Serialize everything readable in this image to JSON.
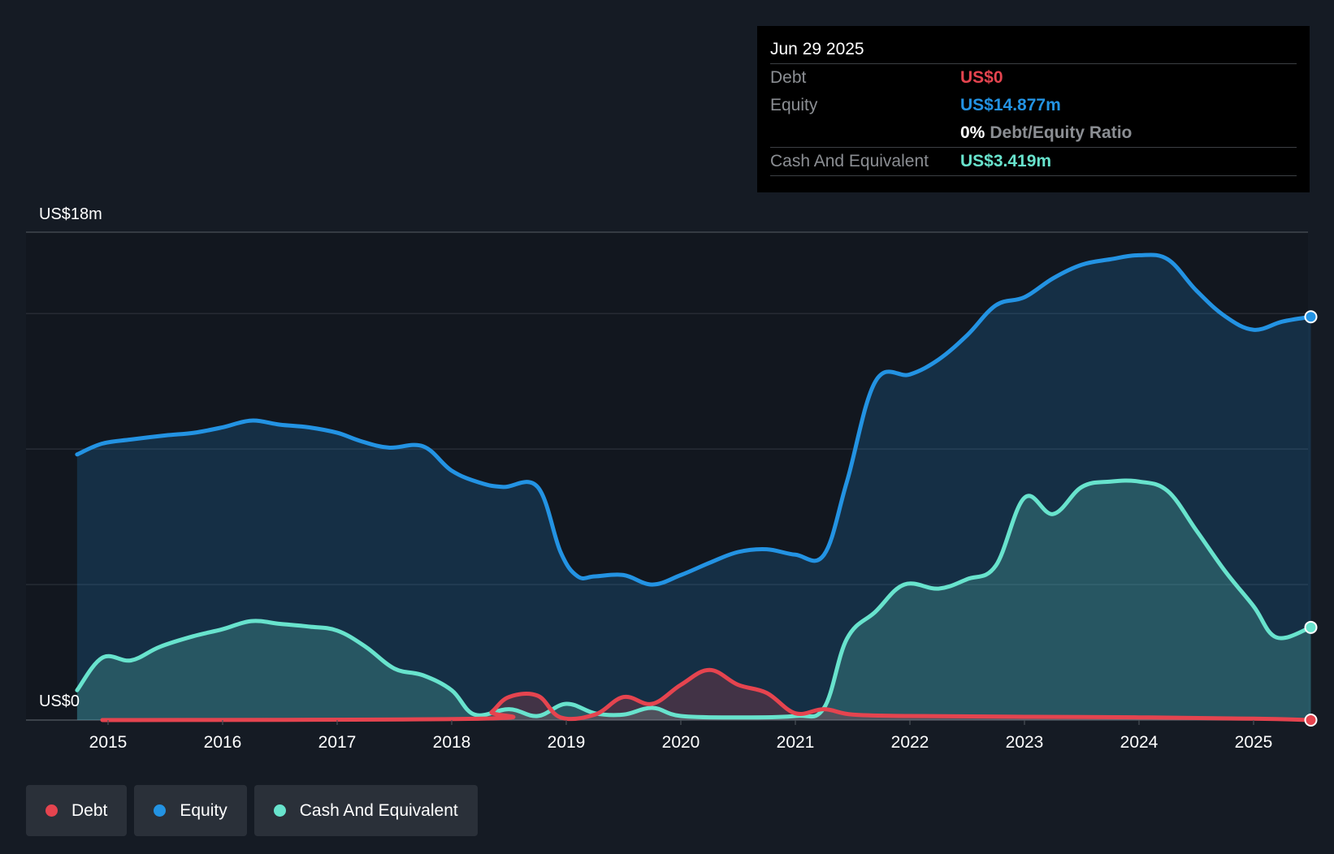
{
  "tooltip": {
    "date": "Jun 29 2025",
    "debt_label": "Debt",
    "debt_value": "US$0",
    "equity_label": "Equity",
    "equity_value": "US$14.877m",
    "ratio_pct": "0%",
    "ratio_label": "Debt/Equity Ratio",
    "cash_label": "Cash And Equivalent",
    "cash_value": "US$3.419m"
  },
  "legend": [
    {
      "label": "Debt",
      "color": "#e5444f"
    },
    {
      "label": "Equity",
      "color": "#2393e3"
    },
    {
      "label": "Cash And Equivalent",
      "color": "#68e3cd"
    }
  ],
  "colors": {
    "debt": "#e5444f",
    "equity": "#2393e3",
    "cash": "#68e3cd",
    "background": "#151b24",
    "grid": "#2c323b"
  },
  "chart_data": {
    "type": "area",
    "title": "",
    "ylabel_top": "US$18m",
    "ylabel_bottom": "US$0",
    "ylim": [
      0,
      18
    ],
    "xlim": [
      2014.7,
      2025.5
    ],
    "gridlines": [
      0,
      5,
      10,
      15,
      18
    ],
    "xticks": [
      "2015",
      "2016",
      "2017",
      "2018",
      "2019",
      "2020",
      "2021",
      "2022",
      "2023",
      "2024",
      "2025"
    ],
    "series": [
      {
        "name": "Equity",
        "x": [
          2014.73,
          2014.95,
          2015.2,
          2015.5,
          2015.75,
          2016.0,
          2016.25,
          2016.5,
          2016.75,
          2017.0,
          2017.2,
          2017.45,
          2017.75,
          2018.0,
          2018.25,
          2018.45,
          2018.75,
          2018.95,
          2019.1,
          2019.25,
          2019.5,
          2019.75,
          2020.0,
          2020.25,
          2020.5,
          2020.75,
          2021.0,
          2021.25,
          2021.45,
          2021.7,
          2022.0,
          2022.25,
          2022.5,
          2022.75,
          2023.0,
          2023.25,
          2023.5,
          2023.75,
          2024.0,
          2024.25,
          2024.5,
          2024.75,
          2025.0,
          2025.25,
          2025.5
        ],
        "values": [
          9.8,
          10.2,
          10.35,
          10.5,
          10.6,
          10.8,
          11.05,
          10.9,
          10.8,
          10.6,
          10.3,
          10.05,
          10.1,
          9.2,
          8.75,
          8.6,
          8.6,
          6.2,
          5.3,
          5.3,
          5.35,
          5.0,
          5.35,
          5.8,
          6.2,
          6.3,
          6.1,
          6.1,
          8.8,
          12.5,
          12.75,
          13.3,
          14.2,
          15.3,
          15.6,
          16.3,
          16.8,
          17.0,
          17.15,
          17.0,
          15.85,
          14.9,
          14.4,
          14.7,
          14.877
        ]
      },
      {
        "name": "Cash And Equivalent",
        "x": [
          2014.73,
          2014.95,
          2015.2,
          2015.45,
          2015.75,
          2016.0,
          2016.25,
          2016.5,
          2016.75,
          2017.0,
          2017.25,
          2017.5,
          2017.75,
          2018.0,
          2018.2,
          2018.5,
          2018.75,
          2019.0,
          2019.25,
          2019.5,
          2019.75,
          2020.0,
          2020.5,
          2021.0,
          2021.25,
          2021.45,
          2021.7,
          2021.95,
          2022.25,
          2022.5,
          2022.75,
          2023.0,
          2023.25,
          2023.5,
          2023.75,
          2024.0,
          2024.25,
          2024.5,
          2024.75,
          2025.0,
          2025.2,
          2025.5
        ],
        "values": [
          1.1,
          2.3,
          2.2,
          2.7,
          3.1,
          3.35,
          3.65,
          3.55,
          3.45,
          3.3,
          2.7,
          1.9,
          1.65,
          1.1,
          0.2,
          0.4,
          0.15,
          0.6,
          0.25,
          0.2,
          0.45,
          0.15,
          0.1,
          0.15,
          0.45,
          3.0,
          4.0,
          5.0,
          4.85,
          5.2,
          5.7,
          8.2,
          7.6,
          8.6,
          8.8,
          8.8,
          8.45,
          7.0,
          5.5,
          4.2,
          3.05,
          3.419
        ]
      },
      {
        "name": "Debt",
        "x": [
          2014.95,
          2018.25,
          2018.35,
          2018.5,
          2018.75,
          2018.95,
          2019.25,
          2019.5,
          2019.75,
          2020.0,
          2020.25,
          2020.5,
          2020.75,
          2021.0,
          2021.25,
          2021.5,
          2022.0,
          2023.0,
          2024.0,
          2025.0,
          2025.5
        ],
        "values": [
          0.0,
          0.05,
          0.3,
          0.85,
          0.9,
          0.1,
          0.2,
          0.85,
          0.6,
          1.3,
          1.85,
          1.3,
          1.0,
          0.25,
          0.4,
          0.2,
          0.15,
          0.12,
          0.1,
          0.05,
          0.0
        ]
      }
    ]
  }
}
